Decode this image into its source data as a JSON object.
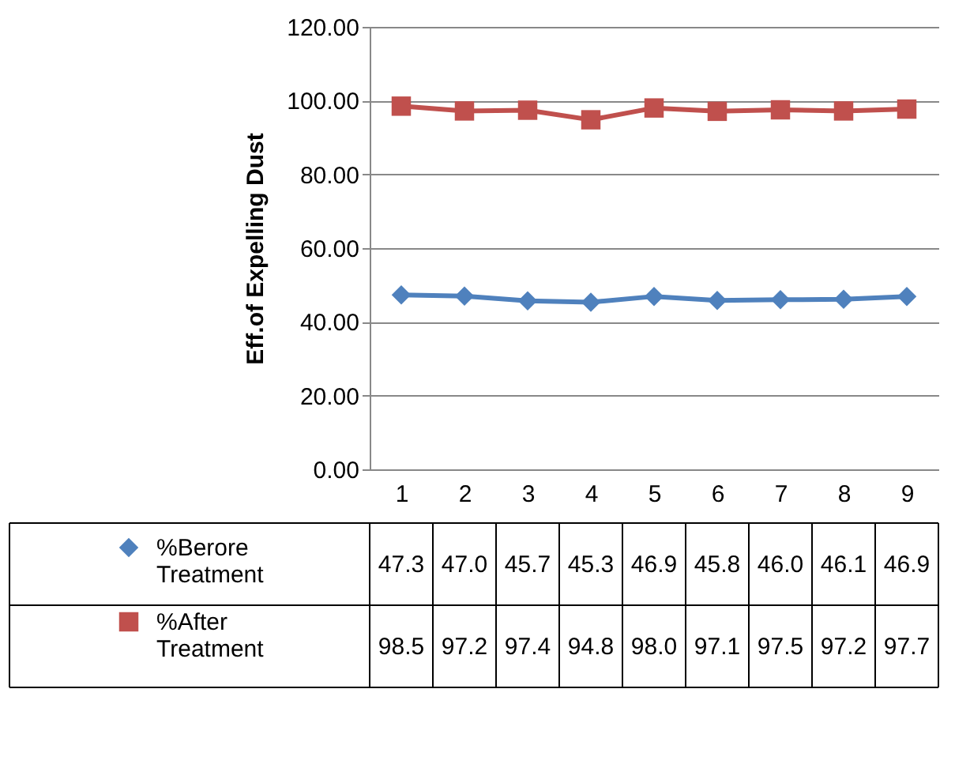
{
  "chart_data": {
    "type": "line",
    "ylabel": "Eff.of Expelling Dust",
    "categories": [
      "1",
      "2",
      "3",
      "4",
      "5",
      "6",
      "7",
      "8",
      "9"
    ],
    "ylim": [
      0,
      120
    ],
    "yticks": [
      {
        "value": 0,
        "label": "0.00"
      },
      {
        "value": 20,
        "label": "20.00"
      },
      {
        "value": 40,
        "label": "40.00"
      },
      {
        "value": 60,
        "label": "60.00"
      },
      {
        "value": 80,
        "label": "80.00"
      },
      {
        "value": 100,
        "label": "100.00"
      },
      {
        "value": 120,
        "label": "120.00"
      }
    ],
    "grid": "y",
    "legend": "bottom",
    "series": [
      {
        "name": "%Berore Treatment",
        "color": "#4f81bd",
        "marker": "diamond",
        "values": [
          47.3,
          47.0,
          45.7,
          45.3,
          46.9,
          45.8,
          46.0,
          46.1,
          46.9
        ],
        "value_labels": [
          "47.3",
          "47.0",
          "45.7",
          "45.3",
          "46.9",
          "45.8",
          "46.0",
          "46.1",
          "46.9"
        ]
      },
      {
        "name": "%After Treatment",
        "color": "#c0504d",
        "marker": "square",
        "values": [
          98.5,
          97.2,
          97.4,
          94.8,
          98.0,
          97.1,
          97.5,
          97.2,
          97.7
        ],
        "value_labels": [
          "98.5",
          "97.2",
          "97.4",
          "94.8",
          "98.0",
          "97.1",
          "97.5",
          "97.2",
          "97.7"
        ]
      }
    ]
  }
}
